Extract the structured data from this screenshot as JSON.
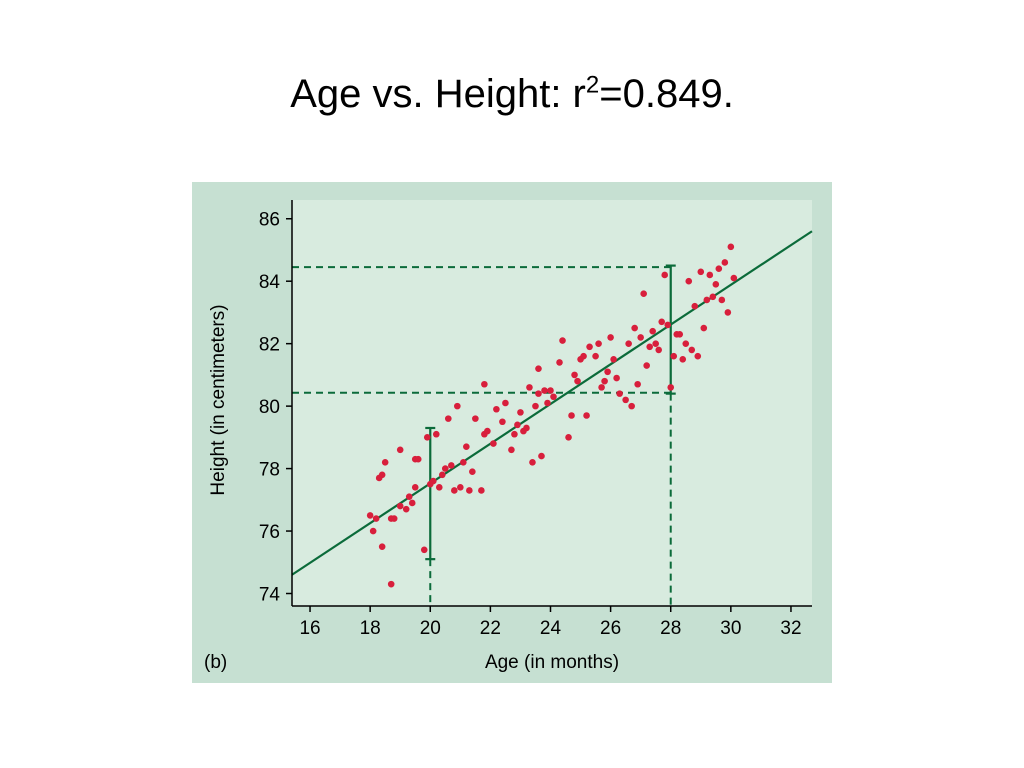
{
  "slide": {
    "title_main": "Age vs. Height: r",
    "title_sup": "2",
    "title_tail": "=0.849."
  },
  "chart_data": {
    "type": "scatter",
    "panel_label": "(b)",
    "xlabel": "Age (in months)",
    "ylabel": "Height (in centimeters)",
    "xlim": [
      15.4,
      32.7
    ],
    "ylim": [
      73.6,
      86.6
    ],
    "xticks": [
      16,
      18,
      20,
      22,
      24,
      26,
      28,
      30,
      32
    ],
    "yticks": [
      74,
      76,
      78,
      80,
      82,
      84,
      86
    ],
    "grid": false,
    "colors": {
      "outer_background": "#c6e0d2",
      "plot_background": "#d8ebdf",
      "points": "#d81f3c",
      "fit_line": "#0b6b3a",
      "axes": "#000000"
    },
    "regression_line": {
      "x": [
        15.4,
        32.7
      ],
      "y": [
        74.6,
        85.6
      ]
    },
    "spread_bars": [
      {
        "x": 20,
        "y_low": 75.1,
        "y_high": 79.3
      },
      {
        "x": 28,
        "y_low": 80.4,
        "y_high": 84.5
      }
    ],
    "reference_lines": {
      "horizontal_y": [
        84.45,
        80.43
      ],
      "vertical_x": [
        20,
        28
      ]
    },
    "points": [
      [
        18.0,
        76.5
      ],
      [
        18.1,
        76.0
      ],
      [
        18.2,
        76.4
      ],
      [
        18.3,
        77.7
      ],
      [
        18.4,
        75.5
      ],
      [
        18.4,
        77.8
      ],
      [
        18.5,
        78.2
      ],
      [
        18.7,
        74.3
      ],
      [
        18.7,
        76.4
      ],
      [
        18.8,
        76.4
      ],
      [
        19.0,
        78.6
      ],
      [
        19.0,
        76.8
      ],
      [
        19.2,
        76.7
      ],
      [
        19.3,
        77.1
      ],
      [
        19.4,
        76.9
      ],
      [
        19.5,
        77.4
      ],
      [
        19.5,
        78.3
      ],
      [
        19.6,
        78.3
      ],
      [
        19.8,
        75.4
      ],
      [
        19.9,
        79.0
      ],
      [
        20.0,
        77.5
      ],
      [
        20.1,
        77.6
      ],
      [
        20.2,
        79.1
      ],
      [
        20.3,
        77.4
      ],
      [
        20.4,
        77.8
      ],
      [
        20.5,
        78.0
      ],
      [
        20.6,
        79.6
      ],
      [
        20.7,
        78.1
      ],
      [
        20.8,
        77.3
      ],
      [
        20.9,
        80.0
      ],
      [
        21.0,
        77.4
      ],
      [
        21.1,
        78.2
      ],
      [
        21.2,
        78.7
      ],
      [
        21.3,
        77.3
      ],
      [
        21.4,
        77.9
      ],
      [
        21.5,
        79.6
      ],
      [
        21.7,
        77.3
      ],
      [
        21.8,
        79.1
      ],
      [
        21.8,
        80.7
      ],
      [
        21.9,
        79.2
      ],
      [
        22.1,
        78.8
      ],
      [
        22.2,
        79.9
      ],
      [
        22.4,
        79.5
      ],
      [
        22.5,
        80.1
      ],
      [
        22.7,
        78.6
      ],
      [
        22.8,
        79.1
      ],
      [
        22.9,
        79.4
      ],
      [
        23.0,
        79.8
      ],
      [
        23.1,
        79.2
      ],
      [
        23.2,
        79.3
      ],
      [
        23.3,
        80.6
      ],
      [
        23.4,
        78.2
      ],
      [
        23.5,
        80.0
      ],
      [
        23.6,
        80.4
      ],
      [
        23.6,
        81.2
      ],
      [
        23.7,
        78.4
      ],
      [
        23.8,
        80.5
      ],
      [
        23.9,
        80.1
      ],
      [
        24.0,
        80.5
      ],
      [
        24.1,
        80.3
      ],
      [
        24.3,
        81.4
      ],
      [
        24.4,
        82.1
      ],
      [
        24.6,
        79.0
      ],
      [
        24.7,
        79.7
      ],
      [
        24.8,
        81.0
      ],
      [
        24.9,
        80.8
      ],
      [
        25.0,
        81.5
      ],
      [
        25.1,
        81.6
      ],
      [
        25.2,
        79.7
      ],
      [
        25.3,
        81.9
      ],
      [
        25.5,
        81.6
      ],
      [
        25.6,
        82.0
      ],
      [
        25.7,
        80.6
      ],
      [
        25.8,
        80.8
      ],
      [
        25.9,
        81.1
      ],
      [
        26.0,
        82.2
      ],
      [
        26.1,
        81.5
      ],
      [
        26.2,
        80.9
      ],
      [
        26.3,
        80.4
      ],
      [
        26.5,
        80.2
      ],
      [
        26.6,
        82.0
      ],
      [
        26.7,
        80.0
      ],
      [
        26.8,
        82.5
      ],
      [
        26.9,
        80.7
      ],
      [
        27.0,
        82.2
      ],
      [
        27.1,
        83.6
      ],
      [
        27.2,
        81.3
      ],
      [
        27.3,
        81.9
      ],
      [
        27.4,
        82.4
      ],
      [
        27.5,
        82.0
      ],
      [
        27.6,
        81.8
      ],
      [
        27.7,
        82.7
      ],
      [
        27.8,
        84.2
      ],
      [
        27.9,
        82.6
      ],
      [
        28.0,
        80.6
      ],
      [
        28.1,
        81.6
      ],
      [
        28.2,
        82.3
      ],
      [
        28.3,
        82.3
      ],
      [
        28.4,
        81.5
      ],
      [
        28.5,
        82.0
      ],
      [
        28.6,
        84.0
      ],
      [
        28.7,
        81.8
      ],
      [
        28.8,
        83.2
      ],
      [
        28.9,
        81.6
      ],
      [
        29.0,
        84.3
      ],
      [
        29.1,
        82.5
      ],
      [
        29.2,
        83.4
      ],
      [
        29.3,
        84.2
      ],
      [
        29.4,
        83.5
      ],
      [
        29.5,
        83.9
      ],
      [
        29.6,
        84.4
      ],
      [
        29.7,
        83.4
      ],
      [
        29.8,
        84.6
      ],
      [
        29.9,
        83.0
      ],
      [
        30.0,
        85.1
      ],
      [
        30.1,
        84.1
      ]
    ]
  }
}
